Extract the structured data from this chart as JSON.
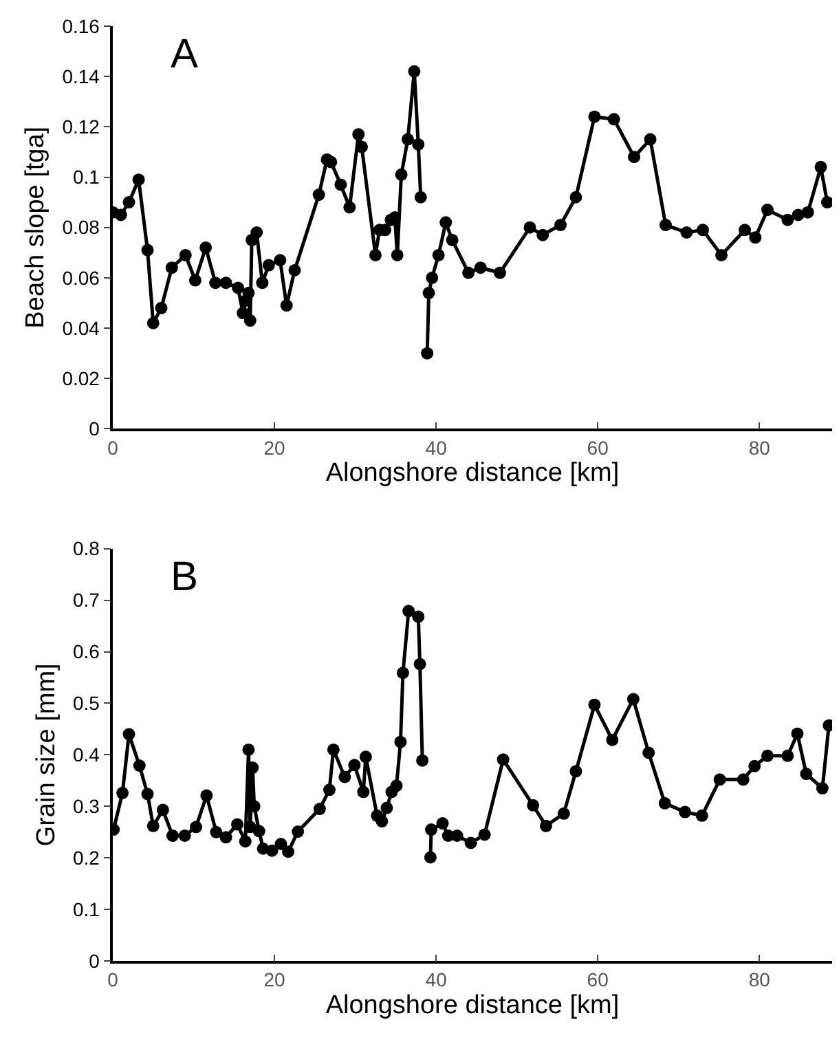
{
  "chart_data": [
    {
      "type": "line",
      "xlabel": "Alongshore distance [km]",
      "ylabel": "Beach slope [tga]",
      "annotations": [
        "A"
      ],
      "marker": "circle",
      "line_style": "solid",
      "xlim": [
        0,
        89
      ],
      "xticks": [
        0,
        20,
        40,
        60,
        80
      ],
      "ylim": [
        0,
        0.16
      ],
      "yticks": [
        0,
        0.02,
        0.04,
        0.06,
        0.08,
        0.1,
        0.12,
        0.14,
        0.16
      ],
      "x": [
        0,
        1,
        2,
        3.2,
        4.3,
        5,
        6,
        7.3,
        9,
        10.2,
        11.5,
        12.7,
        14,
        15.5,
        16.1,
        16.5,
        16.8,
        17,
        17.2,
        17.8,
        18.5,
        19.3,
        20.7,
        21.5,
        22.5,
        25.5,
        26.5,
        27,
        28.2,
        29.3,
        30.4,
        30.8,
        32.5,
        33,
        33.7,
        34.4,
        34.9,
        35.2,
        35.7,
        36.5,
        37.3,
        37.8,
        38.1,
        38.5,
        38.9,
        39.1,
        39.5,
        40.3,
        41.2,
        42,
        44,
        45.5,
        47.9,
        51.6,
        53.2,
        55.4,
        57.3,
        59.6,
        62,
        64.5,
        66.5,
        68.4,
        71,
        73,
        75.3,
        78.2,
        79.5,
        81,
        83.5,
        84.8,
        86,
        87.6,
        88.4
      ],
      "series": [
        {
          "color": "#000000",
          "values": [
            0.086,
            0.085,
            0.09,
            0.099,
            0.071,
            0.042,
            0.048,
            0.064,
            0.069,
            0.059,
            0.072,
            0.058,
            0.058,
            0.056,
            0.046,
            0.051,
            0.054,
            0.043,
            0.075,
            0.078,
            0.058,
            0.065,
            0.067,
            0.049,
            0.063,
            0.093,
            0.107,
            0.106,
            0.097,
            0.088,
            0.117,
            0.112,
            0.069,
            0.079,
            0.079,
            0.083,
            0.084,
            0.069,
            0.101,
            0.115,
            0.142,
            0.113,
            0.092,
            null,
            0.03,
            0.054,
            0.06,
            0.069,
            0.082,
            0.075,
            0.062,
            0.064,
            0.062,
            0.08,
            0.077,
            0.081,
            0.092,
            0.124,
            0.123,
            0.108,
            0.115,
            0.081,
            0.078,
            0.079,
            0.069,
            0.079,
            0.076,
            0.087,
            0.083,
            0.085,
            0.086,
            0.104,
            0.09
          ]
        }
      ]
    },
    {
      "type": "line",
      "xlabel": "Alongshore distance [km]",
      "ylabel": "Grain size [mm]",
      "annotations": [
        "B"
      ],
      "marker": "circle",
      "line_style": "solid",
      "xlim": [
        0,
        89
      ],
      "xticks": [
        0,
        20,
        40,
        60,
        80
      ],
      "ylim": [
        0,
        0.8
      ],
      "yticks": [
        0,
        0.1,
        0.2,
        0.3,
        0.4,
        0.5,
        0.6,
        0.7,
        0.8
      ],
      "x": [
        0.1,
        1.2,
        2,
        3.3,
        4.3,
        5,
        6.2,
        7.4,
        8.9,
        10.3,
        11.6,
        12.8,
        14,
        15.4,
        16.4,
        16.8,
        17,
        17.3,
        17.5,
        18.1,
        18.6,
        19.7,
        20.8,
        21.7,
        22.9,
        25.6,
        26.8,
        27.3,
        28.7,
        29.9,
        31,
        31.3,
        32.7,
        33.3,
        33.9,
        34.5,
        35.1,
        35.6,
        35.9,
        36.6,
        37.8,
        38,
        38.3,
        38.8,
        39.3,
        39.4,
        40.8,
        41.5,
        42.6,
        44.3,
        46,
        48.3,
        52,
        53.6,
        55.8,
        57.3,
        59.6,
        61.8,
        64.4,
        66.3,
        68.3,
        70.8,
        72.9,
        75.1,
        78,
        79.4,
        81,
        83.5,
        84.7,
        85.8,
        87.8,
        88.6
      ],
      "series": [
        {
          "color": "#000000",
          "values": [
            0.255,
            0.326,
            0.44,
            0.379,
            0.324,
            0.262,
            0.293,
            0.243,
            0.243,
            0.26,
            0.321,
            0.25,
            0.24,
            0.265,
            0.232,
            0.41,
            0.26,
            0.375,
            0.3,
            0.252,
            0.218,
            0.214,
            0.227,
            0.212,
            0.251,
            0.295,
            0.332,
            0.41,
            0.357,
            0.38,
            0.328,
            0.396,
            0.282,
            0.271,
            0.297,
            0.328,
            0.34,
            0.425,
            0.559,
            0.679,
            0.668,
            0.576,
            0.389,
            null,
            0.201,
            0.255,
            0.267,
            0.243,
            0.243,
            0.229,
            0.245,
            0.391,
            0.302,
            0.262,
            0.286,
            0.368,
            0.497,
            0.429,
            0.508,
            0.404,
            0.306,
            0.289,
            0.282,
            0.352,
            0.352,
            0.378,
            0.398,
            0.398,
            0.441,
            0.363,
            0.335,
            0.457
          ]
        }
      ]
    }
  ]
}
